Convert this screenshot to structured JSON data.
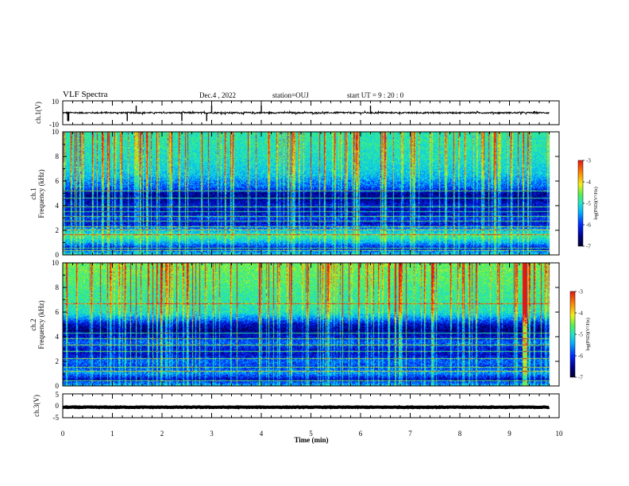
{
  "header": {
    "title": "VLF Spectra",
    "date": "Dec.4 , 2022",
    "station": "station=OUJ",
    "start": "start UT =  9 : 20 : 0"
  },
  "chart_data": [
    {
      "type": "line",
      "panel": "ch1-waveform",
      "ylabel": "ch.1(V)",
      "ylim": [
        -10,
        10
      ],
      "y_ticks": [
        "10",
        "-10"
      ],
      "xlim": [
        0,
        10
      ],
      "series": [
        {
          "baseline": 0.0,
          "noise_amplitude": 0.6
        }
      ],
      "spikes_min": [
        0.1,
        0.12,
        1.3,
        1.48,
        2.4,
        2.9,
        3.0,
        4.0,
        6.2
      ]
    },
    {
      "type": "heatmap",
      "panel": "ch1-spectrogram",
      "ylabel": "ch.1\nFrequency (kHz)",
      "xlim": [
        0,
        10
      ],
      "ylim": [
        0,
        10
      ],
      "y_ticks": [
        "0",
        "2",
        "4",
        "6",
        "8",
        "10"
      ],
      "colorbar": {
        "label": "log(PSD)(V²/Hz)",
        "range": [
          -7,
          -3
        ],
        "ticks": [
          "-3",
          "-4",
          "-5",
          "-6",
          "-7"
        ]
      },
      "spectrum_profile_log_psd": [
        {
          "f": 0.0,
          "v": -5.2
        },
        {
          "f": 0.5,
          "v": -6.3
        },
        {
          "f": 1.0,
          "v": -5.4
        },
        {
          "f": 1.5,
          "v": -4.8
        },
        {
          "f": 2.0,
          "v": -5.5
        },
        {
          "f": 2.5,
          "v": -6.3
        },
        {
          "f": 3.0,
          "v": -6.0
        },
        {
          "f": 3.5,
          "v": -6.4
        },
        {
          "f": 4.0,
          "v": -6.2
        },
        {
          "f": 4.5,
          "v": -6.5
        },
        {
          "f": 5.0,
          "v": -6.5
        },
        {
          "f": 5.5,
          "v": -5.8
        },
        {
          "f": 6.0,
          "v": -5.6
        },
        {
          "f": 6.5,
          "v": -5.3
        },
        {
          "f": 7.0,
          "v": -5.2
        },
        {
          "f": 7.5,
          "v": -5.1
        },
        {
          "f": 8.0,
          "v": -5.0
        },
        {
          "f": 8.5,
          "v": -5.0
        },
        {
          "f": 9.0,
          "v": -4.9
        },
        {
          "f": 9.5,
          "v": -4.9
        },
        {
          "f": 10.0,
          "v": -4.9
        }
      ],
      "narrowband_lines_khz": [
        0.3,
        0.55,
        1.6,
        2.0,
        2.3,
        2.7,
        3.1,
        3.5,
        3.9,
        4.6,
        5.2
      ],
      "sferic_count": 140
    },
    {
      "type": "heatmap",
      "panel": "ch2-spectrogram",
      "ylabel": "ch.2\nFrequency (kHz)",
      "xlim": [
        0,
        10
      ],
      "ylim": [
        0,
        10
      ],
      "y_ticks": [
        "0",
        "2",
        "4",
        "6",
        "8",
        "10"
      ],
      "colorbar": {
        "label": "log(PSD)(V²/Hz)",
        "range": [
          -7,
          -3
        ],
        "ticks": [
          "-3",
          "-4",
          "-5",
          "-6",
          "-7"
        ]
      },
      "spectrum_profile_log_psd": [
        {
          "f": 0.0,
          "v": -5.4
        },
        {
          "f": 0.5,
          "v": -6.4
        },
        {
          "f": 1.0,
          "v": -5.6
        },
        {
          "f": 1.5,
          "v": -6.0
        },
        {
          "f": 2.0,
          "v": -5.8
        },
        {
          "f": 2.5,
          "v": -6.3
        },
        {
          "f": 3.0,
          "v": -6.2
        },
        {
          "f": 3.5,
          "v": -5.8
        },
        {
          "f": 4.0,
          "v": -6.3
        },
        {
          "f": 4.5,
          "v": -6.6
        },
        {
          "f": 5.0,
          "v": -6.3
        },
        {
          "f": 5.5,
          "v": -5.6
        },
        {
          "f": 6.0,
          "v": -5.0
        },
        {
          "f": 6.5,
          "v": -4.9
        },
        {
          "f": 7.0,
          "v": -4.8
        },
        {
          "f": 7.5,
          "v": -4.8
        },
        {
          "f": 8.0,
          "v": -4.7
        },
        {
          "f": 8.5,
          "v": -4.6
        },
        {
          "f": 9.0,
          "v": -4.6
        },
        {
          "f": 9.5,
          "v": -4.5
        },
        {
          "f": 10.0,
          "v": -4.5
        }
      ],
      "narrowband_lines_khz": [
        0.4,
        1.2,
        1.5,
        2.2,
        2.8,
        3.3,
        3.8,
        4.3,
        6.7
      ],
      "strong_event_min": 9.3,
      "sferic_count": 130
    },
    {
      "type": "line",
      "panel": "ch3-waveform",
      "ylabel": "ch.3(V)",
      "ylim": [
        -5,
        5
      ],
      "y_ticks": [
        "5",
        "0",
        "-5"
      ],
      "xlim": [
        0,
        10
      ],
      "series": [
        {
          "baseline": -0.6,
          "noise_amplitude": 0.25
        }
      ]
    }
  ],
  "xaxis": {
    "label": "Time (min)",
    "ticks": [
      "0",
      "1",
      "2",
      "3",
      "4",
      "5",
      "6",
      "7",
      "8",
      "9",
      "10"
    ]
  },
  "colors": {
    "axis": "#000000",
    "trace": "#000000",
    "colormap": [
      "#000030",
      "#00008f",
      "#0028ff",
      "#00b4ff",
      "#1ee6c8",
      "#50f050",
      "#f0f014",
      "#ff8c00",
      "#e61414"
    ]
  }
}
